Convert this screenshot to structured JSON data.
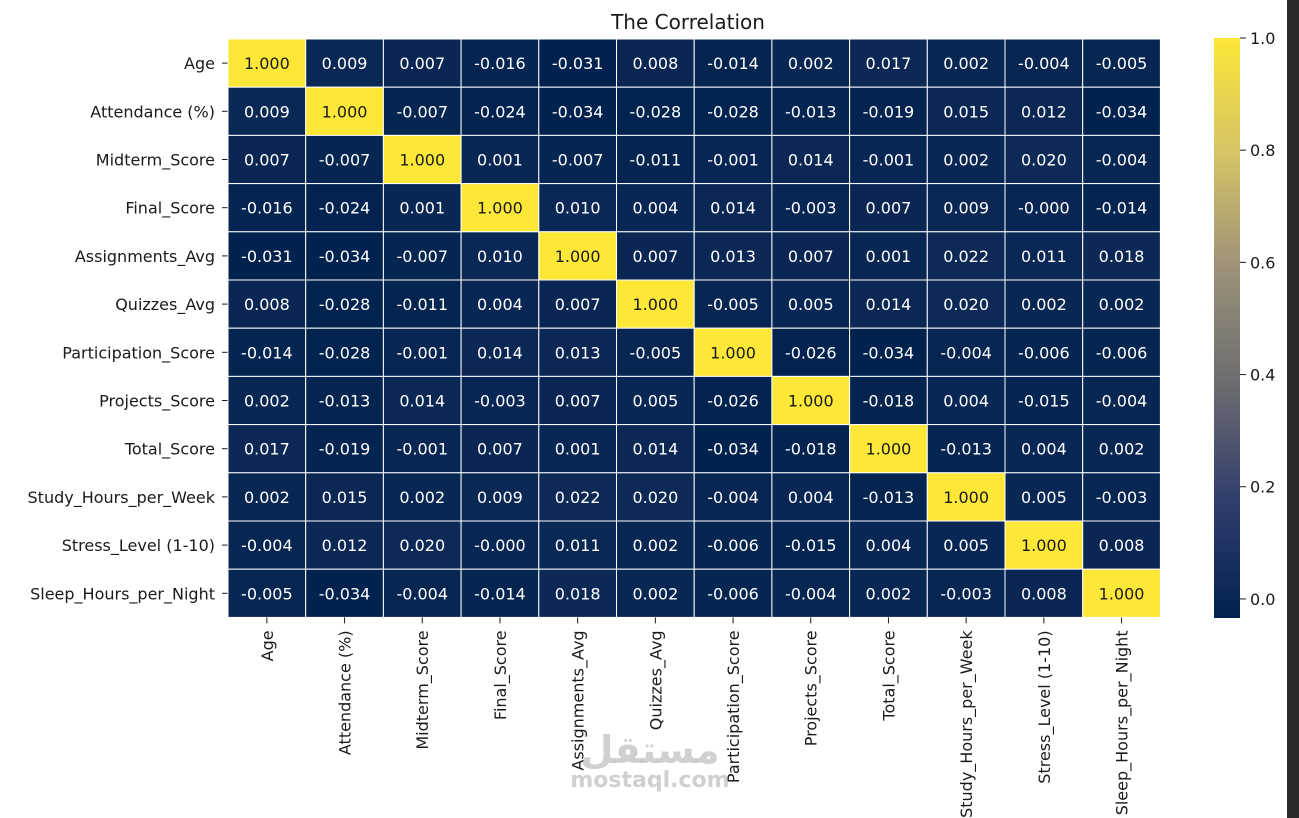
{
  "chart_data": {
    "type": "heatmap",
    "title": "The Correlation",
    "labels": [
      "Age",
      "Attendance (%)",
      "Midterm_Score",
      "Final_Score",
      "Assignments_Avg",
      "Quizzes_Avg",
      "Participation_Score",
      "Projects_Score",
      "Total_Score",
      "Study_Hours_per_Week",
      "Stress_Level (1-10)",
      "Sleep_Hours_per_Night"
    ],
    "matrix": [
      [
        "1.000",
        "0.009",
        "0.007",
        "-0.016",
        "-0.031",
        "0.008",
        "-0.014",
        "0.002",
        "0.017",
        "0.002",
        "-0.004",
        "-0.005"
      ],
      [
        "0.009",
        "1.000",
        "-0.007",
        "-0.024",
        "-0.034",
        "-0.028",
        "-0.028",
        "-0.013",
        "-0.019",
        "0.015",
        "0.012",
        "-0.034"
      ],
      [
        "0.007",
        "-0.007",
        "1.000",
        "0.001",
        "-0.007",
        "-0.011",
        "-0.001",
        "0.014",
        "-0.001",
        "0.002",
        "0.020",
        "-0.004"
      ],
      [
        "-0.016",
        "-0.024",
        "0.001",
        "1.000",
        "0.010",
        "0.004",
        "0.014",
        "-0.003",
        "0.007",
        "0.009",
        "-0.000",
        "-0.014"
      ],
      [
        "-0.031",
        "-0.034",
        "-0.007",
        "0.010",
        "1.000",
        "0.007",
        "0.013",
        "0.007",
        "0.001",
        "0.022",
        "0.011",
        "0.018"
      ],
      [
        "0.008",
        "-0.028",
        "-0.011",
        "0.004",
        "0.007",
        "1.000",
        "-0.005",
        "0.005",
        "0.014",
        "0.020",
        "0.002",
        "0.002"
      ],
      [
        "-0.014",
        "-0.028",
        "-0.001",
        "0.014",
        "0.013",
        "-0.005",
        "1.000",
        "-0.026",
        "-0.034",
        "-0.004",
        "-0.006",
        "-0.006"
      ],
      [
        "0.002",
        "-0.013",
        "0.014",
        "-0.003",
        "0.007",
        "0.005",
        "-0.026",
        "1.000",
        "-0.018",
        "0.004",
        "-0.015",
        "-0.004"
      ],
      [
        "0.017",
        "-0.019",
        "-0.001",
        "0.007",
        "0.001",
        "0.014",
        "-0.034",
        "-0.018",
        "1.000",
        "-0.013",
        "0.004",
        "0.002"
      ],
      [
        "0.002",
        "0.015",
        "0.002",
        "0.009",
        "0.022",
        "0.020",
        "-0.004",
        "0.004",
        "-0.013",
        "1.000",
        "0.005",
        "-0.003"
      ],
      [
        "-0.004",
        "0.012",
        "0.020",
        "-0.000",
        "0.011",
        "0.002",
        "-0.006",
        "-0.015",
        "0.004",
        "0.005",
        "1.000",
        "0.008"
      ],
      [
        "-0.005",
        "-0.034",
        "-0.004",
        "-0.014",
        "0.018",
        "0.002",
        "-0.006",
        "-0.004",
        "0.002",
        "-0.003",
        "0.008",
        "1.000"
      ]
    ],
    "colormap": "cividis",
    "value_range": [
      -0.034,
      1.0
    ],
    "colorbar_ticks": [
      "0.0",
      "0.2",
      "0.4",
      "0.6",
      "0.8",
      "1.0"
    ],
    "grid_line_color": "#ffffff",
    "cell_text_color_dark": "#ffffff",
    "cell_text_color_light": "#1a1a1a"
  },
  "watermark": {
    "arabic": "مستقل",
    "latin": "mostaql.com"
  }
}
